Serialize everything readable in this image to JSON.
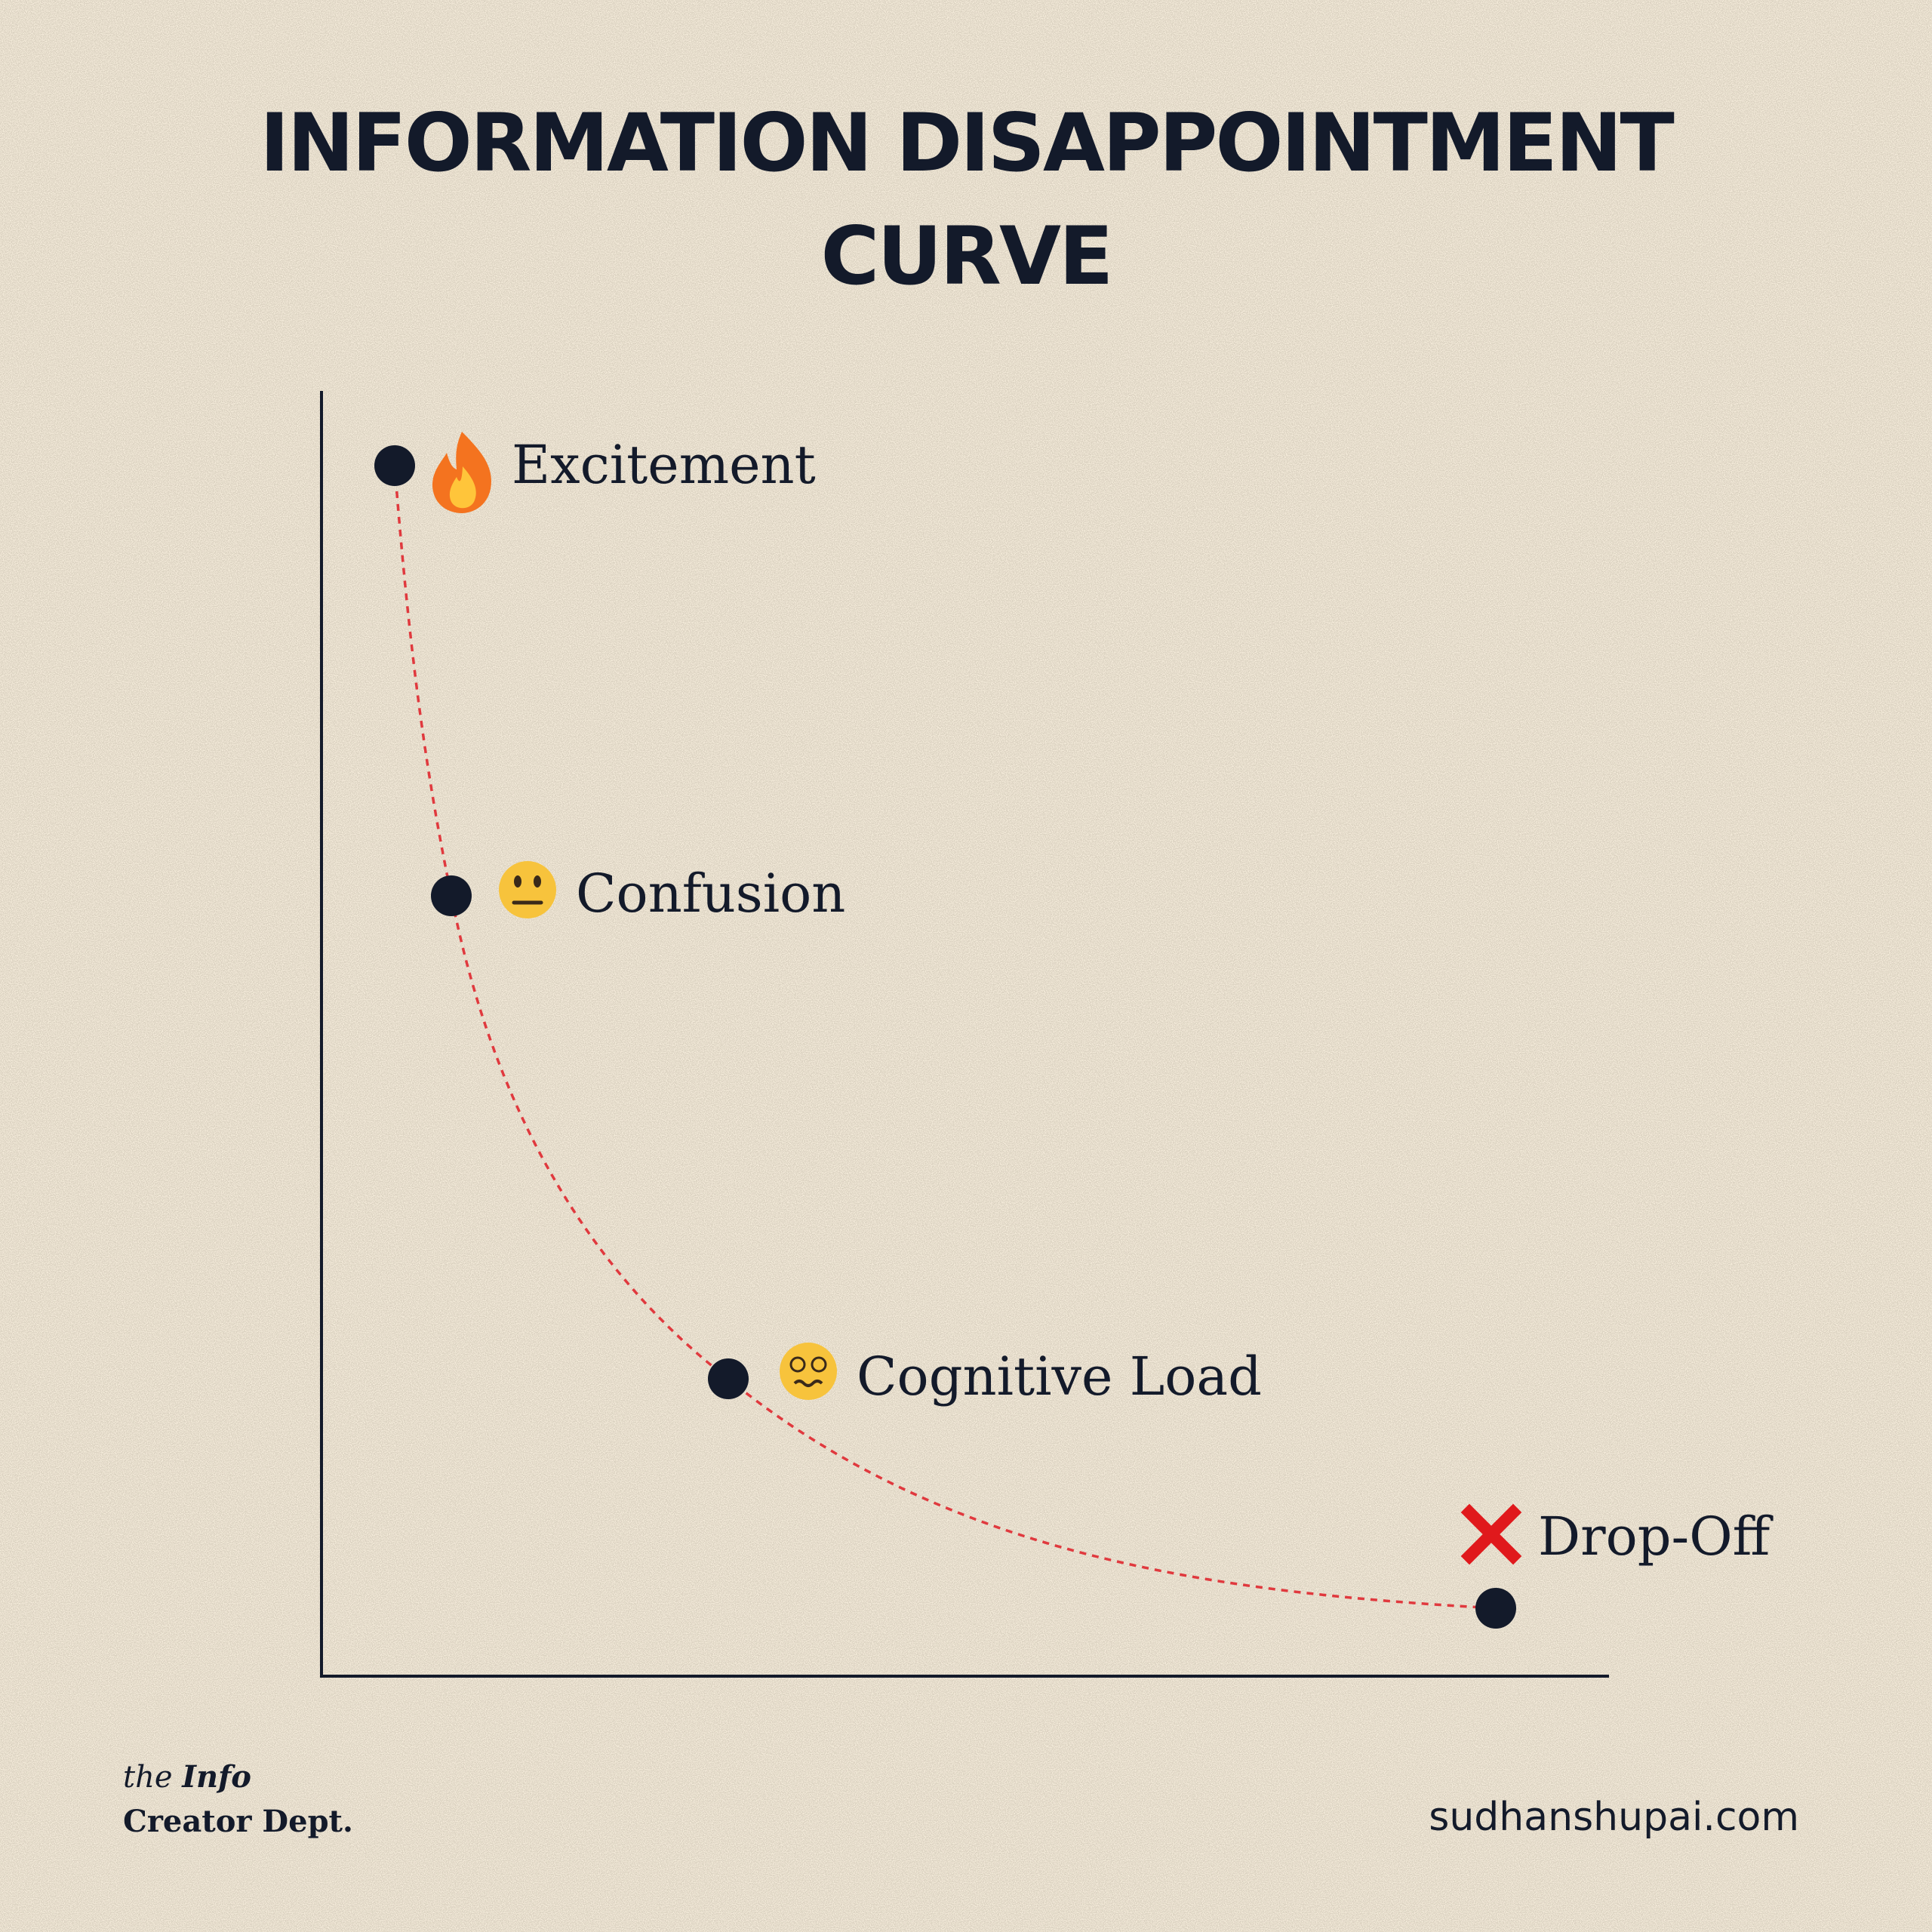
{
  "title": "INFORMATION DISAPPOINTMENT CURVE",
  "nodes": [
    {
      "label": "Excitement"
    },
    {
      "label": "Confusion"
    },
    {
      "label": "Cognitive Load"
    },
    {
      "label": "Drop-Off"
    }
  ],
  "footer": {
    "brand": {
      "article": "the",
      "name": "Info",
      "line2": "Creator Dept."
    },
    "website": "sudhanshupai.com"
  }
}
